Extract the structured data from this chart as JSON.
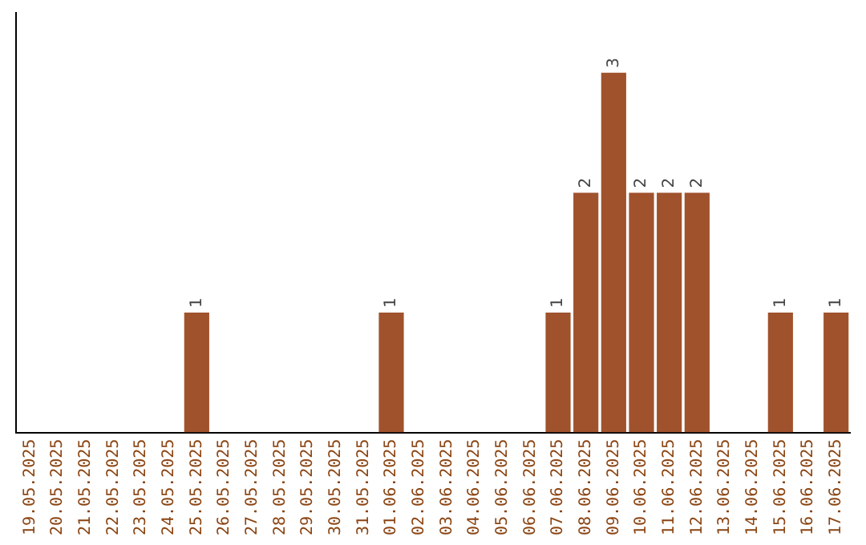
{
  "chart_data": {
    "type": "bar",
    "categories": [
      "19.05.2025",
      "20.05.2025",
      "21.05.2025",
      "22.05.2025",
      "23.05.2025",
      "24.05.2025",
      "25.05.2025",
      "26.05.2025",
      "27.05.2025",
      "28.05.2025",
      "29.05.2025",
      "30.05.2025",
      "31.05.2025",
      "01.06.2025",
      "02.06.2025",
      "03.06.2025",
      "04.06.2025",
      "05.06.2025",
      "06.06.2025",
      "07.06.2025",
      "08.06.2025",
      "09.06.2025",
      "10.06.2025",
      "11.06.2025",
      "12.06.2025",
      "13.06.2025",
      "14.06.2025",
      "15.06.2025",
      "16.06.2025",
      "17.06.2025"
    ],
    "values": [
      0,
      0,
      0,
      0,
      0,
      0,
      1,
      0,
      0,
      0,
      0,
      0,
      0,
      1,
      0,
      0,
      0,
      0,
      0,
      1,
      2,
      3,
      2,
      2,
      2,
      0,
      0,
      1,
      0,
      1
    ],
    "value_labels": [
      null,
      null,
      null,
      null,
      null,
      null,
      "1",
      null,
      null,
      null,
      null,
      null,
      null,
      "1",
      null,
      null,
      null,
      null,
      null,
      "1",
      "2",
      "3",
      "2",
      "2",
      "2",
      null,
      null,
      "1",
      null,
      "1"
    ],
    "color": "#a0522d",
    "tick_labels": "x",
    "grid": false,
    "legend": false
  }
}
